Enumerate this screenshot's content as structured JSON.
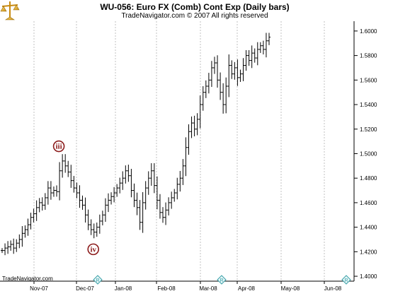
{
  "chart_data": {
    "type": "ohlc",
    "title": "WU-056:  Euro FX (Comb) Cont Exp  (Daily bars)",
    "subtitle": "TradeNavigator.com © 2007 All rights reserved",
    "watermark": "TradeNavigator.com",
    "ylim": [
      1.396,
      1.608
    ],
    "y_ticks": [
      "1.4000",
      "1.4200",
      "1.4400",
      "1.4600",
      "1.4800",
      "1.5000",
      "1.5200",
      "1.5400",
      "1.5600",
      "1.5800",
      "1.6000"
    ],
    "x_ticks": [
      "Nov-07",
      "Dec-07",
      "Jan-08",
      "Feb-08",
      "Mar-08",
      "Apr-08",
      "May-08",
      "Jun-08"
    ],
    "grid": true,
    "colors": {
      "bars": "#000000",
      "grid": "#9a9a9a",
      "wave_label": "#8b1a1a",
      "marker": "#3aa0a8"
    },
    "wave_labels": [
      {
        "text": "iii",
        "bar_index": 20,
        "value": 1.506
      },
      {
        "text": "iv",
        "bar_index": 32,
        "value": 1.422
      }
    ],
    "markers": [
      "R",
      "R",
      "R"
    ],
    "closes": [
      1.421,
      1.423,
      1.424,
      1.426,
      1.423,
      1.427,
      1.43,
      1.435,
      1.438,
      1.442,
      1.448,
      1.451,
      1.456,
      1.46,
      1.458,
      1.464,
      1.472,
      1.468,
      1.47,
      1.469,
      1.486,
      1.494,
      1.49,
      1.485,
      1.478,
      1.472,
      1.468,
      1.462,
      1.458,
      1.45,
      1.442,
      1.438,
      1.436,
      1.44,
      1.445,
      1.45,
      1.458,
      1.462,
      1.465,
      1.468,
      1.472,
      1.476,
      1.48,
      1.486,
      1.482,
      1.47,
      1.462,
      1.456,
      1.444,
      1.46,
      1.472,
      1.48,
      1.486,
      1.474,
      1.462,
      1.452,
      1.448,
      1.454,
      1.46,
      1.464,
      1.468,
      1.475,
      1.48,
      1.49,
      1.505,
      1.518,
      1.525,
      1.52,
      1.528,
      1.54,
      1.55,
      1.555,
      1.56,
      1.57,
      1.574,
      1.56,
      1.55,
      1.54,
      1.555,
      1.572,
      1.565,
      1.57,
      1.562,
      1.565,
      1.572,
      1.58,
      1.576,
      1.582,
      1.578,
      1.585,
      1.588,
      1.585,
      1.592,
      1.595
    ]
  }
}
